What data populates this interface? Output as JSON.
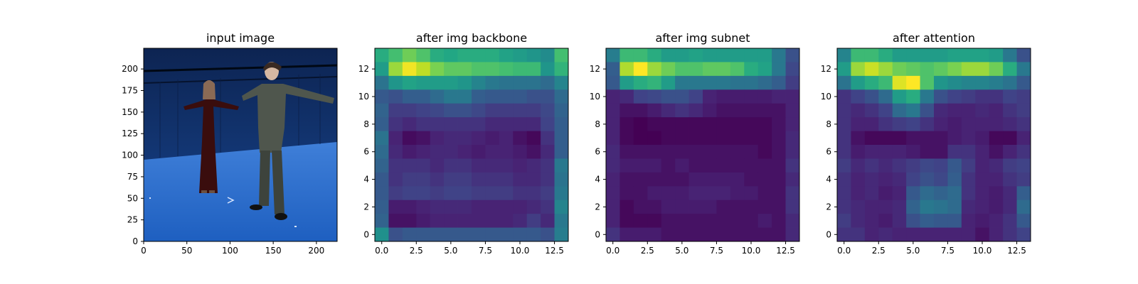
{
  "figure": {
    "panels": [
      {
        "title": "input image",
        "xticks": [
          "0",
          "50",
          "100",
          "150",
          "200"
        ],
        "yticks": [
          "0",
          "25",
          "50",
          "75",
          "100",
          "125",
          "150",
          "175",
          "200"
        ]
      },
      {
        "title": "after img backbone",
        "xticks": [
          "0.0",
          "2.5",
          "5.0",
          "7.5",
          "10.0",
          "12.5"
        ],
        "yticks": [
          "0",
          "2",
          "4",
          "6",
          "8",
          "10",
          "12"
        ]
      },
      {
        "title": "after img subnet",
        "xticks": [
          "0.0",
          "2.5",
          "5.0",
          "7.5",
          "10.0",
          "12.5"
        ],
        "yticks": [
          "0",
          "2",
          "4",
          "6",
          "8",
          "10",
          "12"
        ]
      },
      {
        "title": "after attention",
        "xticks": [
          "0.0",
          "2.5",
          "5.0",
          "7.5",
          "10.0",
          "12.5"
        ],
        "yticks": [
          "0",
          "2",
          "4",
          "6",
          "8",
          "10",
          "12"
        ]
      }
    ]
  },
  "chart_data": [
    {
      "type": "image",
      "title": "input image",
      "xlim": [
        0,
        224
      ],
      "ylim": [
        224,
        0
      ],
      "x_ticks": [
        0,
        50,
        100,
        150,
        200
      ],
      "y_ticks": [
        0,
        25,
        50,
        75,
        100,
        125,
        150,
        175,
        200
      ],
      "grid": false
    },
    {
      "type": "heatmap",
      "title": "after img backbone",
      "colormap": "viridis",
      "xlim": [
        -0.5,
        13.5
      ],
      "ylim": [
        13.5,
        -0.5
      ],
      "x_ticks": [
        0.0,
        2.5,
        5.0,
        7.5,
        10.0,
        12.5
      ],
      "y_ticks": [
        0,
        2,
        4,
        6,
        8,
        10,
        12
      ],
      "grid": false,
      "values": [
        [
          0.62,
          0.7,
          0.78,
          0.72,
          0.62,
          0.6,
          0.62,
          0.62,
          0.62,
          0.58,
          0.55,
          0.52,
          0.48,
          0.7
        ],
        [
          0.55,
          0.85,
          0.98,
          0.9,
          0.8,
          0.75,
          0.75,
          0.72,
          0.72,
          0.7,
          0.68,
          0.68,
          0.52,
          0.65
        ],
        [
          0.38,
          0.52,
          0.58,
          0.55,
          0.55,
          0.55,
          0.52,
          0.45,
          0.4,
          0.38,
          0.38,
          0.38,
          0.35,
          0.45
        ],
        [
          0.28,
          0.25,
          0.3,
          0.3,
          0.35,
          0.4,
          0.4,
          0.3,
          0.28,
          0.28,
          0.28,
          0.25,
          0.25,
          0.35
        ],
        [
          0.32,
          0.18,
          0.18,
          0.2,
          0.22,
          0.25,
          0.25,
          0.22,
          0.18,
          0.18,
          0.18,
          0.18,
          0.22,
          0.32
        ],
        [
          0.3,
          0.15,
          0.12,
          0.15,
          0.15,
          0.15,
          0.15,
          0.15,
          0.12,
          0.12,
          0.12,
          0.12,
          0.2,
          0.3
        ],
        [
          0.38,
          0.1,
          0.03,
          0.05,
          0.1,
          0.12,
          0.12,
          0.1,
          0.08,
          0.1,
          0.05,
          0.02,
          0.15,
          0.3
        ],
        [
          0.35,
          0.12,
          0.08,
          0.1,
          0.12,
          0.12,
          0.1,
          0.08,
          0.1,
          0.1,
          0.08,
          0.05,
          0.12,
          0.3
        ],
        [
          0.32,
          0.15,
          0.15,
          0.15,
          0.12,
          0.15,
          0.15,
          0.12,
          0.12,
          0.12,
          0.1,
          0.12,
          0.15,
          0.4
        ],
        [
          0.28,
          0.15,
          0.18,
          0.18,
          0.15,
          0.18,
          0.18,
          0.15,
          0.15,
          0.15,
          0.12,
          0.12,
          0.15,
          0.38
        ],
        [
          0.28,
          0.18,
          0.2,
          0.2,
          0.18,
          0.2,
          0.2,
          0.18,
          0.18,
          0.18,
          0.15,
          0.15,
          0.18,
          0.4
        ],
        [
          0.3,
          0.08,
          0.08,
          0.1,
          0.12,
          0.12,
          0.12,
          0.1,
          0.1,
          0.1,
          0.1,
          0.12,
          0.15,
          0.45
        ],
        [
          0.32,
          0.05,
          0.05,
          0.08,
          0.1,
          0.1,
          0.1,
          0.1,
          0.1,
          0.1,
          0.12,
          0.18,
          0.12,
          0.4
        ],
        [
          0.5,
          0.25,
          0.28,
          0.28,
          0.28,
          0.28,
          0.28,
          0.28,
          0.28,
          0.28,
          0.28,
          0.28,
          0.25,
          0.42
        ]
      ]
    },
    {
      "type": "heatmap",
      "title": "after img subnet",
      "colormap": "viridis",
      "xlim": [
        -0.5,
        13.5
      ],
      "ylim": [
        13.5,
        -0.5
      ],
      "x_ticks": [
        0.0,
        2.5,
        5.0,
        7.5,
        10.0,
        12.5
      ],
      "y_ticks": [
        0,
        2,
        4,
        6,
        8,
        10,
        12
      ],
      "grid": false,
      "values": [
        [
          0.42,
          0.68,
          0.68,
          0.62,
          0.55,
          0.55,
          0.58,
          0.55,
          0.55,
          0.55,
          0.55,
          0.55,
          0.4,
          0.25
        ],
        [
          0.3,
          0.88,
          1.0,
          0.85,
          0.78,
          0.72,
          0.72,
          0.75,
          0.75,
          0.72,
          0.62,
          0.58,
          0.4,
          0.22
        ],
        [
          0.28,
          0.55,
          0.62,
          0.65,
          0.55,
          0.4,
          0.4,
          0.4,
          0.4,
          0.38,
          0.38,
          0.35,
          0.3,
          0.18
        ],
        [
          0.1,
          0.12,
          0.2,
          0.22,
          0.25,
          0.25,
          0.2,
          0.1,
          0.08,
          0.08,
          0.08,
          0.08,
          0.1,
          0.1
        ],
        [
          0.1,
          0.05,
          0.05,
          0.08,
          0.12,
          0.15,
          0.12,
          0.08,
          0.05,
          0.05,
          0.05,
          0.05,
          0.05,
          0.1
        ],
        [
          0.1,
          0.02,
          0.0,
          0.02,
          0.02,
          0.02,
          0.02,
          0.02,
          0.02,
          0.02,
          0.02,
          0.02,
          0.05,
          0.1
        ],
        [
          0.1,
          0.02,
          0.0,
          0.0,
          0.02,
          0.02,
          0.02,
          0.02,
          0.02,
          0.02,
          0.02,
          0.02,
          0.05,
          0.12
        ],
        [
          0.12,
          0.05,
          0.05,
          0.05,
          0.05,
          0.05,
          0.05,
          0.05,
          0.05,
          0.05,
          0.05,
          0.02,
          0.05,
          0.12
        ],
        [
          0.12,
          0.08,
          0.08,
          0.08,
          0.05,
          0.08,
          0.05,
          0.05,
          0.05,
          0.05,
          0.05,
          0.05,
          0.05,
          0.15
        ],
        [
          0.1,
          0.05,
          0.05,
          0.05,
          0.05,
          0.05,
          0.08,
          0.08,
          0.08,
          0.08,
          0.05,
          0.05,
          0.05,
          0.12
        ],
        [
          0.1,
          0.05,
          0.05,
          0.08,
          0.08,
          0.08,
          0.1,
          0.1,
          0.1,
          0.08,
          0.08,
          0.05,
          0.05,
          0.15
        ],
        [
          0.1,
          0.02,
          0.05,
          0.05,
          0.08,
          0.08,
          0.08,
          0.08,
          0.05,
          0.05,
          0.05,
          0.05,
          0.05,
          0.15
        ],
        [
          0.1,
          0.02,
          0.02,
          0.02,
          0.05,
          0.05,
          0.05,
          0.05,
          0.05,
          0.05,
          0.05,
          0.08,
          0.05,
          0.12
        ],
        [
          0.15,
          0.08,
          0.08,
          0.08,
          0.05,
          0.05,
          0.05,
          0.05,
          0.05,
          0.05,
          0.05,
          0.05,
          0.05,
          0.12
        ]
      ]
    },
    {
      "type": "heatmap",
      "title": "after attention",
      "colormap": "viridis",
      "xlim": [
        -0.5,
        13.5
      ],
      "ylim": [
        13.5,
        -0.5
      ],
      "x_ticks": [
        0.0,
        2.5,
        5.0,
        7.5,
        10.0,
        12.5
      ],
      "y_ticks": [
        0,
        2,
        4,
        6,
        8,
        10,
        12
      ],
      "grid": false,
      "values": [
        [
          0.45,
          0.68,
          0.68,
          0.62,
          0.55,
          0.55,
          0.55,
          0.55,
          0.58,
          0.58,
          0.58,
          0.55,
          0.4,
          0.25
        ],
        [
          0.55,
          0.85,
          0.92,
          0.85,
          0.78,
          0.75,
          0.72,
          0.75,
          0.8,
          0.85,
          0.85,
          0.78,
          0.62,
          0.4
        ],
        [
          0.38,
          0.55,
          0.62,
          0.68,
          0.95,
          1.0,
          0.72,
          0.52,
          0.48,
          0.45,
          0.45,
          0.42,
          0.38,
          0.28
        ],
        [
          0.15,
          0.2,
          0.25,
          0.35,
          0.55,
          0.62,
          0.4,
          0.25,
          0.2,
          0.18,
          0.15,
          0.15,
          0.2,
          0.18
        ],
        [
          0.15,
          0.12,
          0.15,
          0.2,
          0.35,
          0.4,
          0.25,
          0.12,
          0.1,
          0.1,
          0.12,
          0.1,
          0.15,
          0.18
        ],
        [
          0.15,
          0.1,
          0.1,
          0.15,
          0.18,
          0.2,
          0.15,
          0.1,
          0.08,
          0.1,
          0.1,
          0.1,
          0.12,
          0.15
        ],
        [
          0.15,
          0.05,
          0.02,
          0.02,
          0.02,
          0.05,
          0.05,
          0.05,
          0.08,
          0.1,
          0.08,
          0.02,
          0.02,
          0.1
        ],
        [
          0.15,
          0.08,
          0.1,
          0.1,
          0.1,
          0.08,
          0.05,
          0.05,
          0.15,
          0.15,
          0.1,
          0.05,
          0.1,
          0.15
        ],
        [
          0.18,
          0.12,
          0.15,
          0.12,
          0.15,
          0.18,
          0.22,
          0.2,
          0.28,
          0.18,
          0.1,
          0.12,
          0.18,
          0.2
        ],
        [
          0.15,
          0.1,
          0.12,
          0.1,
          0.12,
          0.2,
          0.25,
          0.22,
          0.3,
          0.15,
          0.1,
          0.1,
          0.15,
          0.18
        ],
        [
          0.15,
          0.1,
          0.12,
          0.08,
          0.1,
          0.28,
          0.35,
          0.32,
          0.35,
          0.15,
          0.1,
          0.08,
          0.12,
          0.3
        ],
        [
          0.15,
          0.12,
          0.1,
          0.1,
          0.12,
          0.32,
          0.4,
          0.38,
          0.35,
          0.12,
          0.1,
          0.08,
          0.12,
          0.35
        ],
        [
          0.18,
          0.12,
          0.1,
          0.08,
          0.12,
          0.25,
          0.3,
          0.28,
          0.28,
          0.1,
          0.08,
          0.1,
          0.15,
          0.28
        ],
        [
          0.15,
          0.15,
          0.1,
          0.12,
          0.1,
          0.1,
          0.1,
          0.1,
          0.1,
          0.1,
          0.05,
          0.1,
          0.15,
          0.2
        ]
      ]
    }
  ]
}
